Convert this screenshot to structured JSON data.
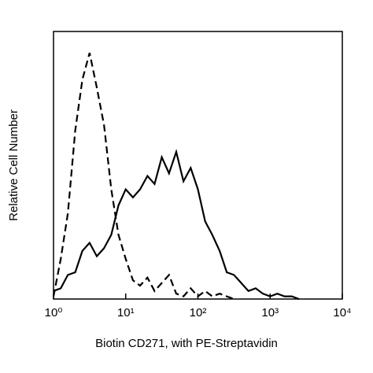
{
  "chart_data": {
    "type": "line",
    "xlabel": "Biotin CD271, with PE-Streptavidin",
    "ylabel": "Relative Cell Number",
    "xscale": "log",
    "xlim": [
      1,
      10000
    ],
    "xticks": [
      {
        "value": 1,
        "label": "10⁰"
      },
      {
        "value": 10,
        "label": "10¹"
      },
      {
        "value": 100,
        "label": "10²"
      },
      {
        "value": 1000,
        "label": "10³"
      },
      {
        "value": 10000,
        "label": "10⁴"
      }
    ],
    "ylim": [
      0,
      100
    ],
    "x": [
      1,
      1.26,
      1.58,
      2,
      2.51,
      3.16,
      3.98,
      5.01,
      6.31,
      7.94,
      10,
      12.6,
      15.8,
      20,
      25.1,
      31.6,
      39.8,
      50.1,
      63.1,
      79.4,
      100,
      126,
      158,
      200,
      251,
      316,
      398,
      501,
      631,
      794,
      1000,
      1259,
      1585,
      1995,
      2512
    ],
    "series": [
      {
        "color": "#000000",
        "line_style": "dashed",
        "values": [
          1,
          15,
          32,
          63,
          82,
          92,
          79,
          65,
          41,
          24,
          15,
          7,
          5,
          8,
          3,
          6,
          9,
          2,
          1,
          4,
          1,
          3,
          1,
          2,
          1,
          0,
          null,
          null,
          null,
          null,
          null,
          null,
          null,
          null,
          null
        ]
      },
      {
        "color": "#000000",
        "line_style": "solid",
        "values": [
          3,
          4,
          9,
          10,
          18,
          21,
          16,
          19,
          24,
          35,
          41,
          38,
          41,
          46,
          43,
          53,
          47,
          55,
          44,
          49,
          41,
          29,
          24,
          18,
          10,
          9,
          6,
          3,
          4,
          2,
          1,
          2,
          1,
          1,
          0
        ]
      }
    ]
  }
}
